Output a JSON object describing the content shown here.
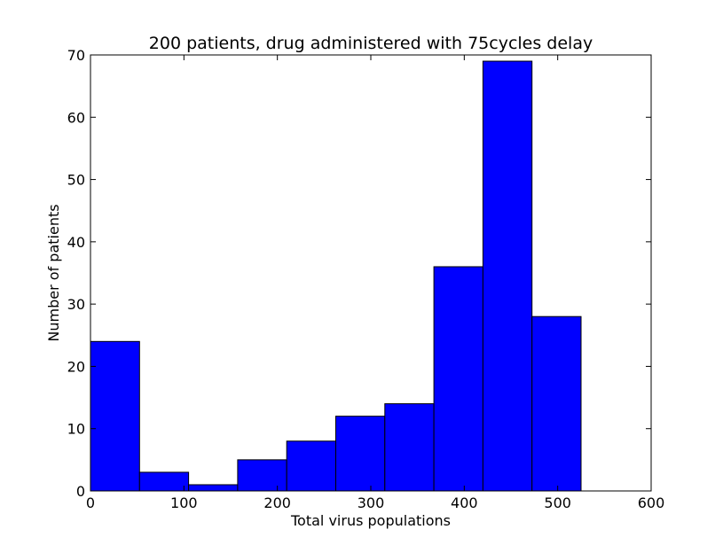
{
  "chart_data": {
    "type": "bar",
    "title": "200 patients, drug administered with 75cycles delay",
    "xlabel": "Total virus populations",
    "ylabel": "Number of patients",
    "xlim": [
      0,
      600
    ],
    "ylim": [
      0,
      70
    ],
    "xticks": [
      0,
      100,
      200,
      300,
      400,
      500,
      600
    ],
    "yticks": [
      0,
      10,
      20,
      30,
      40,
      50,
      60,
      70
    ],
    "bins": [
      {
        "x0": 0,
        "x1": 52.5,
        "count": 24
      },
      {
        "x0": 52.5,
        "x1": 105,
        "count": 3
      },
      {
        "x0": 105,
        "x1": 157.5,
        "count": 1
      },
      {
        "x0": 157.5,
        "x1": 210,
        "count": 5
      },
      {
        "x0": 210,
        "x1": 262.5,
        "count": 8
      },
      {
        "x0": 262.5,
        "x1": 315,
        "count": 12
      },
      {
        "x0": 315,
        "x1": 367.5,
        "count": 14
      },
      {
        "x0": 367.5,
        "x1": 420,
        "count": 36
      },
      {
        "x0": 420,
        "x1": 472.5,
        "count": 69
      },
      {
        "x0": 472.5,
        "x1": 525,
        "count": 28
      }
    ],
    "bar_color": "#0000ff",
    "edge_color": "#000000",
    "grid": false
  }
}
